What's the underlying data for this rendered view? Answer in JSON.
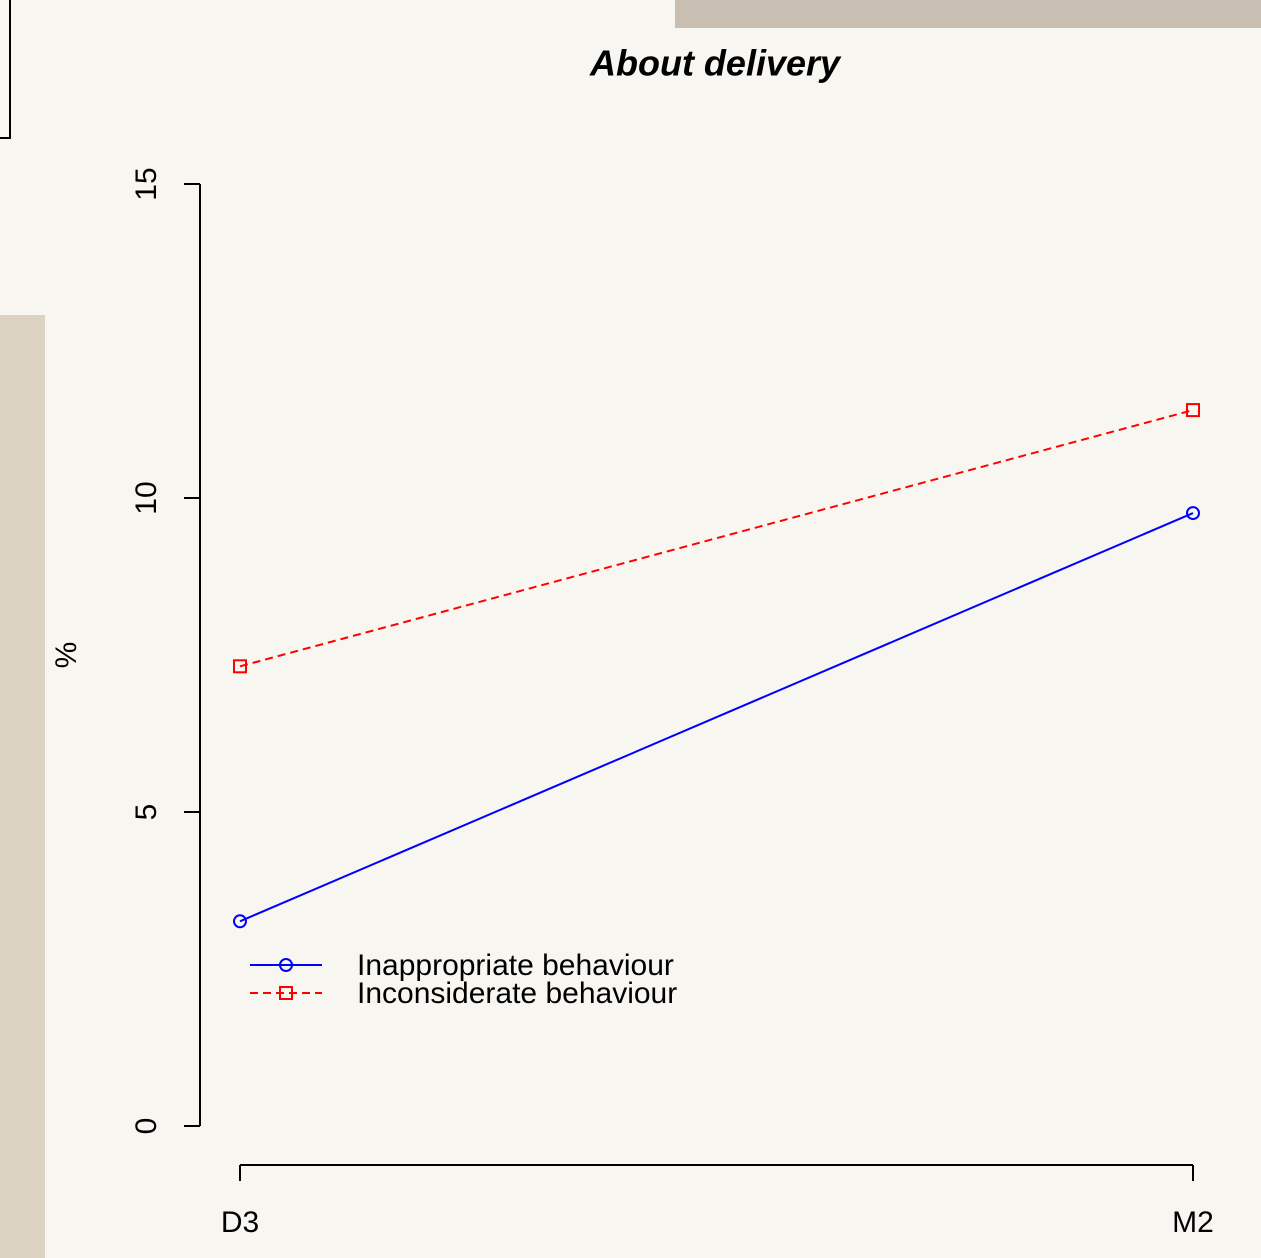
{
  "chart_data": {
    "type": "line",
    "title": "About delivery",
    "y_label": "%",
    "categories": [
      "D3",
      "M2"
    ],
    "series": [
      {
        "name": "Inappropriate behaviour",
        "color": "#0000ff",
        "marker": "circle",
        "dashed": false,
        "values": [
          3.26,
          9.76
        ]
      },
      {
        "name": "Inconsiderate behaviour",
        "color": "#ff0000",
        "marker": "square",
        "dashed": true,
        "values": [
          7.32,
          11.4
        ]
      }
    ],
    "ylim": [
      0,
      15
    ],
    "yticks": [
      0,
      5,
      10,
      15
    ],
    "grid": false,
    "legend": "bottom-left"
  }
}
